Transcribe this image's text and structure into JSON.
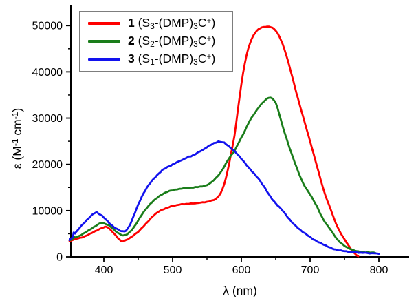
{
  "figure": {
    "background": "#ffffff",
    "axis_color": "#000000",
    "legend_border_color": "#7d7d7d"
  },
  "legend": {
    "items": [
      {
        "num": "1",
        "f1": " (S",
        "s1": "3",
        "f2": "-(DMP)",
        "s2": "3",
        "f3": "C",
        "sup": "+",
        "f4": ")"
      },
      {
        "num": "2",
        "f1": " (S",
        "s1": "2",
        "f2": "-(DMP)",
        "s2": "3",
        "f3": "C",
        "sup": "+",
        "f4": ")"
      },
      {
        "num": "3",
        "f1": " (S",
        "s1": "1",
        "f2": "-(DMP)",
        "s2": "3",
        "f3": "C",
        "sup": "+",
        "f4": ")"
      }
    ]
  },
  "axis_labels": {
    "x": "λ (nm)",
    "y_parts": {
      "p1": "ε (M",
      "sup1": "-1",
      "p2": " cm",
      "sup2": "-1",
      "p3": ")"
    }
  },
  "chart_data": {
    "type": "line",
    "title": "",
    "xlabel": "λ (nm)",
    "ylabel": "ε (M⁻¹ cm⁻¹)",
    "grid": false,
    "legend_position": "top-left",
    "x_range": [
      352,
      844
    ],
    "y_range": [
      0,
      54500
    ],
    "x_major_ticks": [
      400,
      500,
      600,
      700,
      800
    ],
    "x_major_tick_labels": [
      "400",
      "500",
      "600",
      "700",
      "800"
    ],
    "x_minor_ticks": [
      450,
      550,
      650,
      750
    ],
    "y_major_ticks": [
      0,
      10000,
      20000,
      30000,
      40000,
      50000
    ],
    "y_major_tick_labels": [
      "0",
      "10000",
      "20000",
      "30000",
      "40000",
      "50000"
    ],
    "y_minor_ticks": [
      5000,
      15000,
      25000,
      35000,
      45000
    ],
    "series": [
      {
        "name": "1 (S3-(DMP)3C+)",
        "color": "#fe0000",
        "local_max": {
          "x": 403,
          "y": 6500
        },
        "local_min": {
          "x": 426,
          "y": 3350
        },
        "peak": {
          "x": 640,
          "y": 49800
        },
        "points": [
          [
            350,
            3400
          ],
          [
            355,
            3650
          ],
          [
            357,
            4050
          ],
          [
            358,
            3800
          ],
          [
            360,
            3900
          ],
          [
            365,
            4100
          ],
          [
            370,
            4300
          ],
          [
            375,
            4650
          ],
          [
            380,
            5000
          ],
          [
            385,
            5350
          ],
          [
            390,
            5700
          ],
          [
            395,
            6100
          ],
          [
            400,
            6400
          ],
          [
            403,
            6500
          ],
          [
            406,
            6350
          ],
          [
            410,
            5800
          ],
          [
            415,
            5000
          ],
          [
            420,
            4150
          ],
          [
            423,
            3700
          ],
          [
            426,
            3350
          ],
          [
            430,
            3500
          ],
          [
            435,
            3850
          ],
          [
            440,
            4300
          ],
          [
            445,
            4850
          ],
          [
            450,
            5400
          ],
          [
            455,
            6200
          ],
          [
            460,
            7000
          ],
          [
            465,
            7800
          ],
          [
            470,
            8600
          ],
          [
            475,
            9250
          ],
          [
            480,
            9800
          ],
          [
            485,
            10200
          ],
          [
            490,
            10500
          ],
          [
            495,
            10800
          ],
          [
            500,
            11000
          ],
          [
            510,
            11300
          ],
          [
            520,
            11450
          ],
          [
            530,
            11550
          ],
          [
            540,
            11700
          ],
          [
            550,
            11900
          ],
          [
            560,
            12300
          ],
          [
            565,
            12800
          ],
          [
            570,
            13800
          ],
          [
            575,
            15700
          ],
          [
            580,
            18600
          ],
          [
            585,
            22300
          ],
          [
            590,
            26200
          ],
          [
            595,
            31800
          ],
          [
            600,
            37300
          ],
          [
            605,
            41800
          ],
          [
            610,
            45000
          ],
          [
            615,
            47100
          ],
          [
            620,
            48400
          ],
          [
            625,
            49200
          ],
          [
            630,
            49600
          ],
          [
            635,
            49750
          ],
          [
            640,
            49800
          ],
          [
            645,
            49550
          ],
          [
            650,
            48900
          ],
          [
            655,
            47700
          ],
          [
            660,
            46000
          ],
          [
            665,
            43800
          ],
          [
            670,
            41200
          ],
          [
            675,
            38400
          ],
          [
            680,
            35500
          ],
          [
            685,
            32800
          ],
          [
            690,
            30200
          ],
          [
            695,
            27600
          ],
          [
            700,
            25000
          ],
          [
            705,
            22300
          ],
          [
            710,
            19600
          ],
          [
            715,
            16900
          ],
          [
            720,
            14300
          ],
          [
            725,
            12200
          ],
          [
            730,
            10300
          ],
          [
            735,
            8200
          ],
          [
            740,
            6400
          ],
          [
            745,
            5000
          ],
          [
            750,
            3800
          ],
          [
            755,
            2700
          ],
          [
            760,
            1600
          ],
          [
            765,
            700
          ],
          [
            770,
            100
          ]
        ]
      },
      {
        "name": "2 (S2-(DMP)3C+)",
        "color": "#1a7d1a",
        "local_max": {
          "x": 397,
          "y": 7300
        },
        "local_min": {
          "x": 428,
          "y": 4650
        },
        "peak": {
          "x": 640,
          "y": 34400
        },
        "points": [
          [
            350,
            3600
          ],
          [
            355,
            3900
          ],
          [
            357,
            4400
          ],
          [
            358,
            4200
          ],
          [
            360,
            4300
          ],
          [
            365,
            4600
          ],
          [
            370,
            5000
          ],
          [
            375,
            5450
          ],
          [
            380,
            5900
          ],
          [
            385,
            6400
          ],
          [
            390,
            6900
          ],
          [
            394,
            7200
          ],
          [
            397,
            7300
          ],
          [
            400,
            7200
          ],
          [
            405,
            6950
          ],
          [
            410,
            6500
          ],
          [
            415,
            5850
          ],
          [
            420,
            5250
          ],
          [
            424,
            4850
          ],
          [
            428,
            4650
          ],
          [
            432,
            4750
          ],
          [
            436,
            5150
          ],
          [
            440,
            5700
          ],
          [
            445,
            6700
          ],
          [
            450,
            7900
          ],
          [
            455,
            9100
          ],
          [
            460,
            10100
          ],
          [
            465,
            11000
          ],
          [
            470,
            11800
          ],
          [
            475,
            12500
          ],
          [
            480,
            13100
          ],
          [
            485,
            13550
          ],
          [
            490,
            13900
          ],
          [
            495,
            14200
          ],
          [
            500,
            14400
          ],
          [
            510,
            14700
          ],
          [
            520,
            14900
          ],
          [
            530,
            15000
          ],
          [
            540,
            15200
          ],
          [
            550,
            15500
          ],
          [
            560,
            16600
          ],
          [
            565,
            17400
          ],
          [
            570,
            18300
          ],
          [
            575,
            19500
          ],
          [
            580,
            20800
          ],
          [
            585,
            21900
          ],
          [
            590,
            22900
          ],
          [
            595,
            24400
          ],
          [
            600,
            25800
          ],
          [
            605,
            27200
          ],
          [
            610,
            28800
          ],
          [
            615,
            30100
          ],
          [
            620,
            31200
          ],
          [
            625,
            32300
          ],
          [
            630,
            33200
          ],
          [
            635,
            33900
          ],
          [
            640,
            34400
          ],
          [
            645,
            34200
          ],
          [
            650,
            33300
          ],
          [
            655,
            31000
          ],
          [
            660,
            28300
          ],
          [
            665,
            25900
          ],
          [
            670,
            23600
          ],
          [
            675,
            21500
          ],
          [
            680,
            19500
          ],
          [
            685,
            17600
          ],
          [
            690,
            15900
          ],
          [
            695,
            14600
          ],
          [
            700,
            13500
          ],
          [
            705,
            12200
          ],
          [
            710,
            10900
          ],
          [
            715,
            9300
          ],
          [
            720,
            7900
          ],
          [
            725,
            6800
          ],
          [
            730,
            5800
          ],
          [
            735,
            4700
          ],
          [
            740,
            3700
          ],
          [
            745,
            3000
          ],
          [
            750,
            2400
          ],
          [
            755,
            1950
          ],
          [
            760,
            1600
          ],
          [
            765,
            1350
          ],
          [
            770,
            1200
          ],
          [
            775,
            1100
          ],
          [
            780,
            1000
          ],
          [
            785,
            950
          ],
          [
            790,
            900
          ],
          [
            795,
            870
          ]
        ]
      },
      {
        "name": "3 (S1-(DMP)3C+)",
        "color": "#1212ee",
        "local_max": {
          "x": 388,
          "y": 9600
        },
        "local_min": {
          "x": 428,
          "y": 5500
        },
        "peak": {
          "x": 567,
          "y": 24900
        },
        "points": [
          [
            350,
            3700
          ],
          [
            353,
            4000
          ],
          [
            355,
            4300
          ],
          [
            356,
            5300
          ],
          [
            358,
            5100
          ],
          [
            360,
            5400
          ],
          [
            365,
            6300
          ],
          [
            370,
            7100
          ],
          [
            375,
            7900
          ],
          [
            380,
            8700
          ],
          [
            384,
            9200
          ],
          [
            388,
            9600
          ],
          [
            391,
            9500
          ],
          [
            395,
            9100
          ],
          [
            400,
            8500
          ],
          [
            405,
            7750
          ],
          [
            410,
            7050
          ],
          [
            415,
            6450
          ],
          [
            420,
            5950
          ],
          [
            424,
            5650
          ],
          [
            428,
            5500
          ],
          [
            432,
            5650
          ],
          [
            436,
            6400
          ],
          [
            440,
            7600
          ],
          [
            445,
            9500
          ],
          [
            450,
            11300
          ],
          [
            455,
            12900
          ],
          [
            460,
            14300
          ],
          [
            465,
            15500
          ],
          [
            470,
            16500
          ],
          [
            475,
            17300
          ],
          [
            480,
            18000
          ],
          [
            485,
            18700
          ],
          [
            490,
            19200
          ],
          [
            495,
            19600
          ],
          [
            500,
            20000
          ],
          [
            510,
            20700
          ],
          [
            520,
            21400
          ],
          [
            530,
            22000
          ],
          [
            540,
            22800
          ],
          [
            550,
            23700
          ],
          [
            555,
            24200
          ],
          [
            560,
            24600
          ],
          [
            565,
            24850
          ],
          [
            568,
            24900
          ],
          [
            572,
            24800
          ],
          [
            575,
            24650
          ],
          [
            580,
            24100
          ],
          [
            585,
            23500
          ],
          [
            590,
            22900
          ],
          [
            595,
            22100
          ],
          [
            600,
            21200
          ],
          [
            605,
            20300
          ],
          [
            610,
            19400
          ],
          [
            615,
            18600
          ],
          [
            620,
            17800
          ],
          [
            625,
            16900
          ],
          [
            630,
            15800
          ],
          [
            635,
            14700
          ],
          [
            640,
            13500
          ],
          [
            645,
            12500
          ],
          [
            650,
            11600
          ],
          [
            655,
            10800
          ],
          [
            660,
            10000
          ],
          [
            665,
            9000
          ],
          [
            670,
            8100
          ],
          [
            675,
            7300
          ],
          [
            680,
            6600
          ],
          [
            685,
            5900
          ],
          [
            690,
            5300
          ],
          [
            695,
            4800
          ],
          [
            700,
            4300
          ],
          [
            705,
            3800
          ],
          [
            710,
            3400
          ],
          [
            715,
            3000
          ],
          [
            720,
            2600
          ],
          [
            725,
            2250
          ],
          [
            730,
            1950
          ],
          [
            735,
            1700
          ],
          [
            740,
            1500
          ],
          [
            745,
            1350
          ],
          [
            750,
            1200
          ],
          [
            760,
            1050
          ],
          [
            770,
            950
          ],
          [
            780,
            850
          ],
          [
            790,
            780
          ],
          [
            800,
            720
          ]
        ]
      }
    ]
  }
}
